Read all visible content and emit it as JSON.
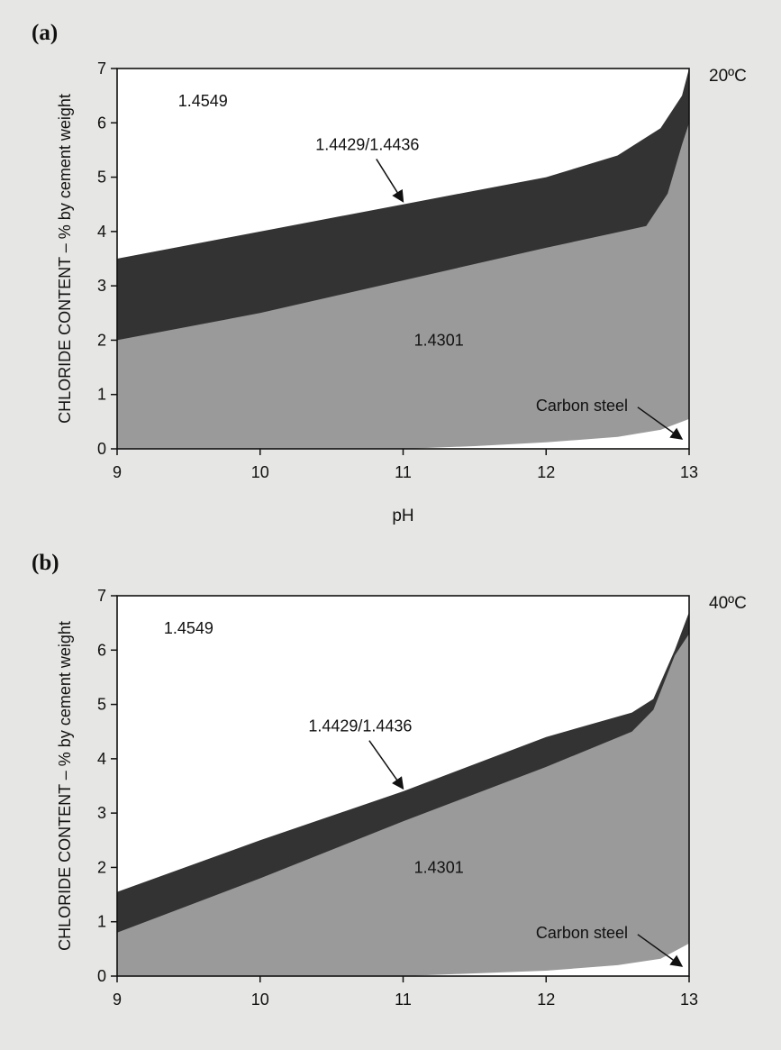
{
  "page": {
    "background": "#e6e6e4"
  },
  "colors": {
    "region_1_4549": "#ffffff",
    "region_1_4429": "#333333",
    "region_1_4301": "#9a9a9a",
    "region_carbon": "#ffffff",
    "axis": "#111111"
  },
  "chart_data": [
    {
      "type": "area",
      "panel_label": "(a)",
      "temperature": "20ºC",
      "xlabel": "pH",
      "ylabel": "CHLORIDE CONTENT – % by cement weight",
      "xlim": [
        9,
        13
      ],
      "ylim": [
        0,
        7
      ],
      "x_ticks": [
        "9",
        "10",
        "11",
        "12",
        "13"
      ],
      "y_ticks": [
        "0",
        "1",
        "2",
        "3",
        "4",
        "5",
        "6",
        "7"
      ],
      "grid": false,
      "series": [
        {
          "name": "1.4549",
          "x": [
            9,
            13
          ],
          "y": [
            7,
            7
          ]
        },
        {
          "name": "1.4429/1.4436",
          "x": [
            9,
            10,
            11,
            12,
            12.5,
            12.8,
            12.95,
            13
          ],
          "y": [
            3.5,
            4.0,
            4.5,
            5.0,
            5.4,
            5.9,
            6.5,
            7.0
          ]
        },
        {
          "name": "1.4301",
          "x": [
            9,
            10,
            11,
            12,
            12.7,
            12.85,
            12.95,
            13
          ],
          "y": [
            2.0,
            2.5,
            3.1,
            3.7,
            4.1,
            4.7,
            5.6,
            6.0
          ]
        },
        {
          "name": "Carbon steel",
          "x": [
            9,
            11,
            11.5,
            12,
            12.5,
            12.8,
            13
          ],
          "y": [
            0,
            0,
            0.05,
            0.12,
            0.22,
            0.35,
            0.55
          ]
        }
      ],
      "annotations": [
        {
          "text": "1.4549",
          "x": 9.6,
          "y": 6.3
        },
        {
          "text": "1.4429/1.4436",
          "x": 10.75,
          "y": 5.5,
          "arrow_to": [
            11.0,
            4.55
          ]
        },
        {
          "text": "1.4301",
          "x": 11.25,
          "y": 1.9
        },
        {
          "text": "Carbon steel",
          "x": 12.25,
          "y": 0.7,
          "arrow_to": [
            12.95,
            0.18
          ]
        }
      ]
    },
    {
      "type": "area",
      "panel_label": "(b)",
      "temperature": "40ºC",
      "xlabel": "",
      "ylabel": "CHLORIDE CONTENT – % by cement weight",
      "xlim": [
        9,
        13
      ],
      "ylim": [
        0,
        7
      ],
      "x_ticks": [
        "9",
        "10",
        "11",
        "12",
        "13"
      ],
      "y_ticks": [
        "0",
        "1",
        "2",
        "3",
        "4",
        "5",
        "6",
        "7"
      ],
      "grid": false,
      "series": [
        {
          "name": "1.4549",
          "x": [
            9,
            13
          ],
          "y": [
            7,
            7
          ]
        },
        {
          "name": "1.4429/1.4436",
          "x": [
            9,
            10,
            11,
            12,
            12.6,
            12.75,
            12.9,
            13
          ],
          "y": [
            1.55,
            2.5,
            3.4,
            4.4,
            4.85,
            5.1,
            6.0,
            6.7
          ]
        },
        {
          "name": "1.4301",
          "x": [
            9,
            10,
            11,
            12,
            12.6,
            12.75,
            12.9,
            13
          ],
          "y": [
            0.8,
            1.8,
            2.85,
            3.85,
            4.5,
            4.9,
            5.9,
            6.3
          ]
        },
        {
          "name": "Carbon steel",
          "x": [
            9,
            11,
            11.5,
            12,
            12.5,
            12.8,
            13
          ],
          "y": [
            0,
            0,
            0.05,
            0.1,
            0.2,
            0.32,
            0.6
          ]
        }
      ],
      "annotations": [
        {
          "text": "1.4549",
          "x": 9.5,
          "y": 6.3
        },
        {
          "text": "1.4429/1.4436",
          "x": 10.7,
          "y": 4.5,
          "arrow_to": [
            11.0,
            3.45
          ]
        },
        {
          "text": "1.4301",
          "x": 11.25,
          "y": 1.9
        },
        {
          "text": "Carbon steel",
          "x": 12.25,
          "y": 0.7,
          "arrow_to": [
            12.95,
            0.18
          ]
        }
      ]
    }
  ]
}
